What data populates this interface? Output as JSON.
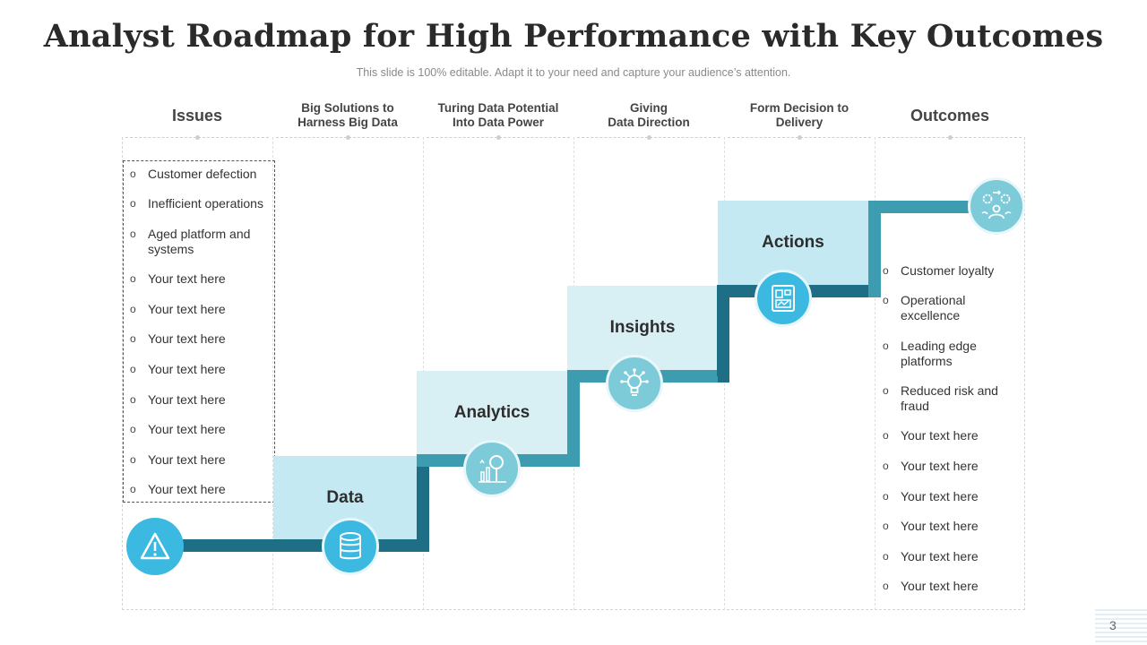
{
  "title": "Analyst Roadmap for High Performance with Key Outcomes",
  "subtitle": "This slide is 100% editable. Adapt it to your need and capture your audience’s attention.",
  "columns": [
    {
      "label": "Issues",
      "style": "big"
    },
    {
      "label": "Big Solutions to\nHarness Big Data",
      "style": "small"
    },
    {
      "label": "Turing Data Potential\nInto Data Power",
      "style": "small"
    },
    {
      "label": "Giving\nData Direction",
      "style": "small"
    },
    {
      "label": "Form Decision to\nDelivery",
      "style": "small"
    },
    {
      "label": "Outcomes",
      "style": "big"
    }
  ],
  "issues": [
    "Customer defection",
    "Inefficient operations",
    "Aged platform and\nsystems",
    "Your text here",
    "Your text here",
    "Your text here",
    "Your text here",
    "Your text here",
    "Your text here",
    "Your text here",
    "Your text here"
  ],
  "outcomes": [
    "Customer loyalty",
    "Operational\nexcellence",
    "Leading edge\nplatforms",
    "Reduced risk and\nfraud",
    "Your text here",
    "Your text here",
    "Your text here",
    "Your text here",
    "Your text here",
    "Your text here"
  ],
  "steps": [
    {
      "label": "Data",
      "icon": "database-icon"
    },
    {
      "label": "Analytics",
      "icon": "analytics-magnifier-icon"
    },
    {
      "label": "Insights",
      "icon": "lightbulb-network-icon"
    },
    {
      "label": "Actions",
      "icon": "dashboard-tablet-icon"
    }
  ],
  "start_icon": "warning-triangle-icon",
  "end_icon": "team-gears-icon",
  "colors": {
    "dark_teal": "#1e6e86",
    "mid_teal": "#3e9cb0",
    "light_box": "#c4e9f3",
    "lighter_box": "#d8eff4",
    "icon_blue": "#3cb9e0",
    "icon_light": "#7dcbd8"
  },
  "page_number": "3"
}
